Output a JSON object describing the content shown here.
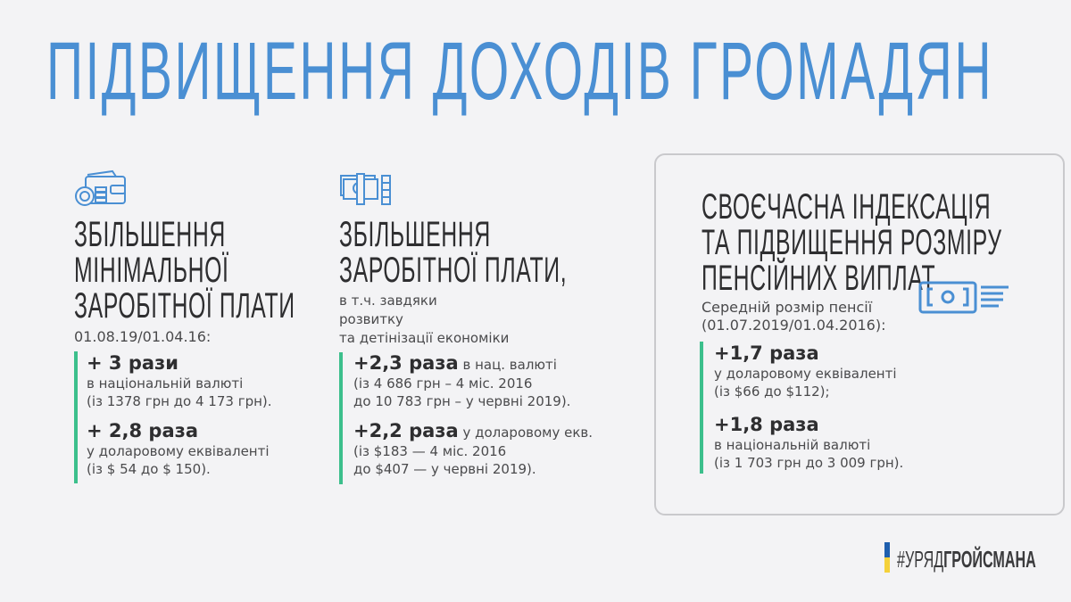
{
  "title": "ПІДВИЩЕННЯ ДОХОДІВ ГРОМАДЯН",
  "colors": {
    "title": "#4a8fd3",
    "accent_bar": "#3cbf8c",
    "icon": "#4a8fd3"
  },
  "col1": {
    "icon": "wallet-coins-icon",
    "heading": [
      "ЗБІЛЬШЕННЯ",
      "МІНІМАЛЬНОЇ",
      "ЗАРОБІТНОЇ ПЛАТИ"
    ],
    "date": "01.08.19/01.04.16:",
    "items": [
      {
        "value": "+ 3 рази",
        "lines": [
          "в національній валюті",
          "(із 1378 грн до 4 173 грн)."
        ]
      },
      {
        "value": "+ 2,8 раза",
        "lines": [
          "у доларовому еквіваленті",
          "(із $ 54 до $ 150)."
        ]
      }
    ]
  },
  "col2": {
    "icon": "banknotes-coins-icon",
    "heading": [
      "ЗБІЛЬШЕННЯ",
      "ЗАРОБІТНОЇ ПЛАТИ,"
    ],
    "sub": [
      "в т.ч. завдяки",
      "розвитку",
      "та детінізації економіки"
    ],
    "items": [
      {
        "value": "+2,3 раза",
        "inline": " в нац. валюті",
        "lines": [
          "(із 4 686 грн – 4 міс. 2016",
          "до 10 783 грн – у червні 2019)."
        ]
      },
      {
        "value": "+2,2 раза",
        "inline": " у доларовому екв.",
        "lines": [
          "(із $183  — 4 міс. 2016",
          "до $407 — у червні 2019)."
        ]
      }
    ]
  },
  "col3": {
    "icon": "banknote-icon",
    "heading": [
      "СВОЄЧАСНА ІНДЕКСАЦІЯ",
      "ТА ПІДВИЩЕННЯ РОЗМІРУ",
      "ПЕНСІЙНИХ ВИПЛАТ"
    ],
    "sub": [
      "Середній розмір пенсії",
      "(01.07.2019/01.04.2016):"
    ],
    "items": [
      {
        "value": "+1,7 раза",
        "lines": [
          "у доларовому еквіваленті",
          "(із $66  до $112);"
        ]
      },
      {
        "value": "+1,8 раза",
        "lines": [
          "в національній валюті",
          "(із 1 703 грн до 3 009 грн)."
        ]
      }
    ]
  },
  "hashtag": {
    "light": "#УРЯД",
    "bold": "ГРОЙСМАНА"
  }
}
